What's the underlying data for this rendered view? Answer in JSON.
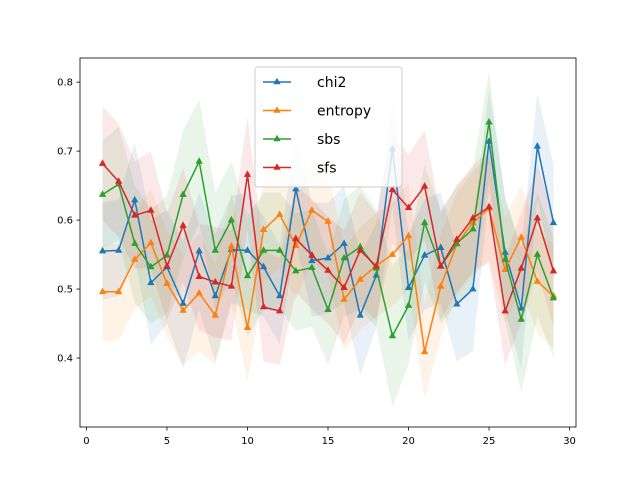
{
  "chart_data": {
    "type": "line",
    "title": "",
    "xlabel": "",
    "ylabel": "",
    "xlim": [
      -0.4,
      30.4
    ],
    "ylim": [
      0.3,
      0.835
    ],
    "xticks": [
      0,
      5,
      10,
      15,
      20,
      25,
      30
    ],
    "yticks": [
      0.4,
      0.5,
      0.6,
      0.7,
      0.8
    ],
    "ytick_labels": [
      "0.4",
      "0.5",
      "0.6",
      "0.7",
      "0.8"
    ],
    "grid": false,
    "legend_position": "top-center",
    "x": [
      1,
      2,
      3,
      4,
      5,
      6,
      7,
      8,
      9,
      10,
      11,
      12,
      13,
      14,
      15,
      16,
      17,
      18,
      19,
      20,
      21,
      22,
      23,
      24,
      25,
      26,
      27,
      28,
      29
    ],
    "series": [
      {
        "name": "chi2",
        "color": "#1f77b4",
        "values": [
          0.555,
          0.556,
          0.629,
          0.509,
          0.532,
          0.479,
          0.555,
          0.49,
          0.557,
          0.556,
          0.532,
          0.49,
          0.645,
          0.541,
          0.545,
          0.566,
          0.462,
          0.52,
          0.703,
          0.502,
          0.549,
          0.56,
          0.478,
          0.5,
          0.714,
          0.553,
          0.472,
          0.707,
          0.596
        ],
        "lower": [
          0.485,
          0.49,
          0.545,
          0.42,
          0.45,
          0.385,
          0.47,
          0.395,
          0.48,
          0.47,
          0.46,
          0.42,
          0.57,
          0.46,
          0.465,
          0.48,
          0.375,
          0.445,
          0.62,
          0.425,
          0.47,
          0.48,
          0.395,
          0.41,
          0.64,
          0.47,
          0.385,
          0.63,
          0.515
        ],
        "upper": [
          0.625,
          0.63,
          0.713,
          0.6,
          0.615,
          0.57,
          0.64,
          0.58,
          0.635,
          0.64,
          0.605,
          0.565,
          0.72,
          0.625,
          0.625,
          0.65,
          0.55,
          0.595,
          0.78,
          0.58,
          0.63,
          0.64,
          0.56,
          0.59,
          0.79,
          0.635,
          0.56,
          0.785,
          0.68
        ]
      },
      {
        "name": "entropy",
        "color": "#ff7f0e",
        "values": [
          0.496,
          0.496,
          0.543,
          0.567,
          0.508,
          0.469,
          0.494,
          0.462,
          0.562,
          0.444,
          0.586,
          0.608,
          0.563,
          0.614,
          0.598,
          0.485,
          0.514,
          0.534,
          0.55,
          0.577,
          0.409,
          0.504,
          0.565,
          0.596,
          0.617,
          0.528,
          0.575,
          0.511,
          0.49
        ],
        "lower": [
          0.425,
          0.425,
          0.47,
          0.49,
          0.43,
          0.39,
          0.41,
          0.39,
          0.48,
          0.365,
          0.51,
          0.53,
          0.485,
          0.54,
          0.52,
          0.41,
          0.44,
          0.46,
          0.475,
          0.5,
          0.34,
          0.43,
          0.49,
          0.52,
          0.54,
          0.45,
          0.5,
          0.435,
          0.415
        ],
        "upper": [
          0.565,
          0.565,
          0.615,
          0.645,
          0.585,
          0.55,
          0.58,
          0.535,
          0.64,
          0.52,
          0.66,
          0.685,
          0.64,
          0.69,
          0.675,
          0.56,
          0.59,
          0.61,
          0.625,
          0.655,
          0.48,
          0.58,
          0.64,
          0.67,
          0.695,
          0.605,
          0.65,
          0.585,
          0.565
        ]
      },
      {
        "name": "sbs",
        "color": "#2ca02c",
        "values": [
          0.637,
          0.652,
          0.566,
          0.532,
          0.549,
          0.637,
          0.685,
          0.556,
          0.6,
          0.519,
          0.556,
          0.556,
          0.526,
          0.531,
          0.47,
          0.545,
          0.561,
          0.53,
          0.432,
          0.476,
          0.596,
          0.533,
          0.566,
          0.587,
          0.742,
          0.543,
          0.456,
          0.55,
          0.487
        ],
        "lower": [
          0.56,
          0.57,
          0.48,
          0.45,
          0.465,
          0.545,
          0.595,
          0.47,
          0.515,
          0.43,
          0.47,
          0.47,
          0.44,
          0.445,
          0.39,
          0.46,
          0.47,
          0.445,
          0.33,
          0.39,
          0.51,
          0.45,
          0.48,
          0.5,
          0.66,
          0.455,
          0.35,
          0.46,
          0.4
        ],
        "upper": [
          0.715,
          0.735,
          0.65,
          0.615,
          0.635,
          0.73,
          0.775,
          0.64,
          0.685,
          0.605,
          0.64,
          0.64,
          0.61,
          0.615,
          0.55,
          0.63,
          0.65,
          0.615,
          0.535,
          0.56,
          0.68,
          0.615,
          0.65,
          0.675,
          0.815,
          0.63,
          0.56,
          0.64,
          0.575
        ]
      },
      {
        "name": "sfs",
        "color": "#d62728",
        "values": [
          0.682,
          0.656,
          0.607,
          0.614,
          0.533,
          0.592,
          0.518,
          0.51,
          0.504,
          0.666,
          0.474,
          0.468,
          0.573,
          0.549,
          0.527,
          0.502,
          0.556,
          0.533,
          0.644,
          0.618,
          0.649,
          0.533,
          0.572,
          0.603,
          0.619,
          0.468,
          0.53,
          0.603,
          0.526
        ],
        "lower": [
          0.6,
          0.575,
          0.53,
          0.53,
          0.455,
          0.51,
          0.44,
          0.43,
          0.425,
          0.585,
          0.395,
          0.39,
          0.495,
          0.47,
          0.45,
          0.42,
          0.475,
          0.455,
          0.565,
          0.54,
          0.57,
          0.455,
          0.495,
          0.525,
          0.54,
          0.39,
          0.45,
          0.525,
          0.445
        ],
        "upper": [
          0.765,
          0.74,
          0.685,
          0.7,
          0.61,
          0.675,
          0.595,
          0.59,
          0.585,
          0.75,
          0.555,
          0.545,
          0.65,
          0.63,
          0.605,
          0.585,
          0.64,
          0.61,
          0.725,
          0.695,
          0.73,
          0.61,
          0.65,
          0.68,
          0.7,
          0.545,
          0.61,
          0.68,
          0.605
        ]
      }
    ]
  }
}
